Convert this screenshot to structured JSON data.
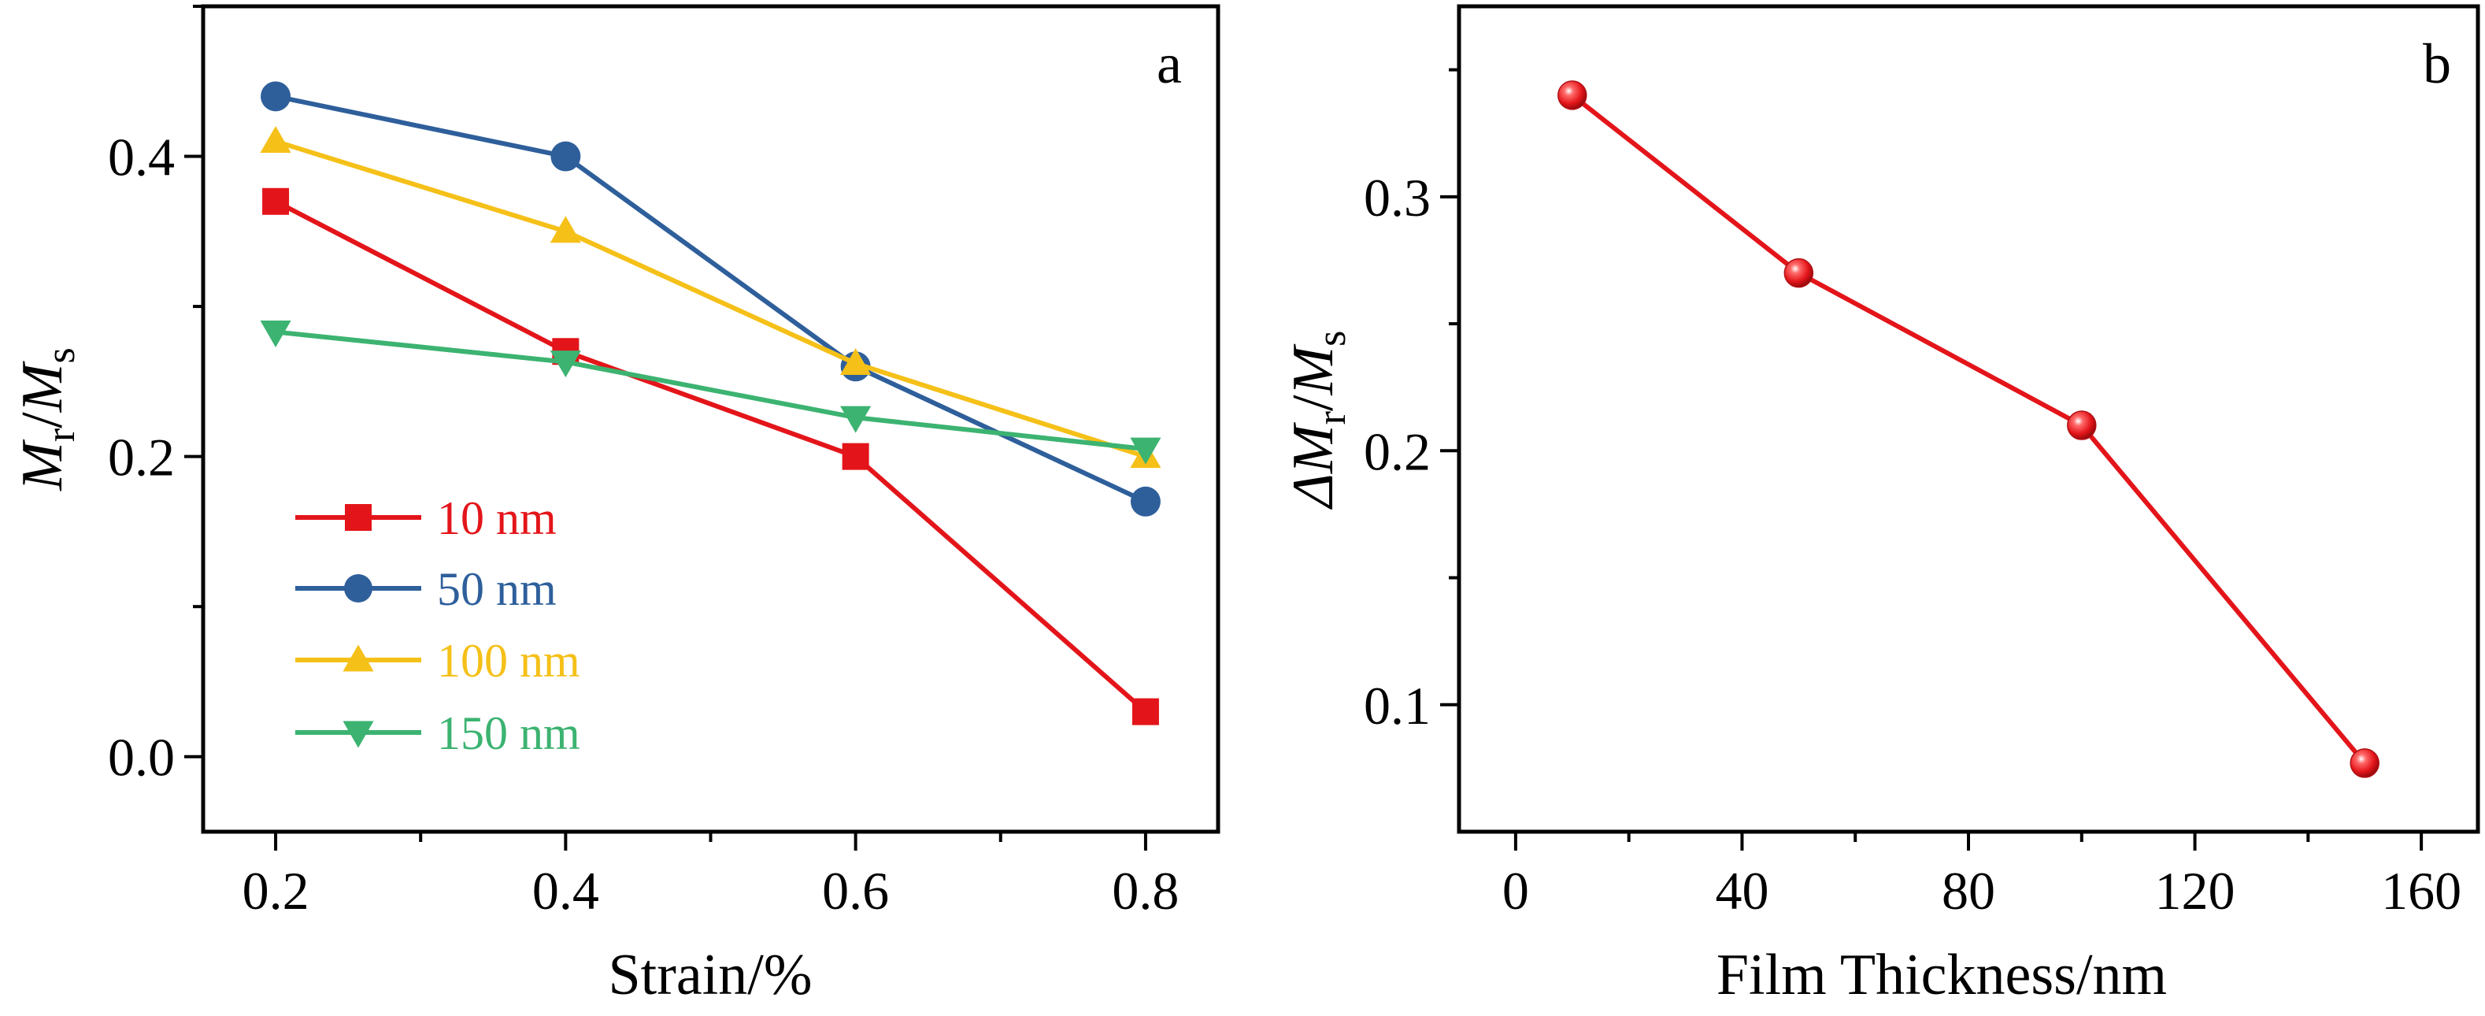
{
  "chart_data": [
    {
      "type": "line",
      "panel_label": "a",
      "xlabel": "Strain/%",
      "ylabel_parts": [
        "M",
        "r",
        "/",
        "M",
        "s"
      ],
      "x": [
        0.2,
        0.4,
        0.6,
        0.8
      ],
      "x_ticks": [
        "0.2",
        "0.4",
        "0.6",
        "0.8"
      ],
      "y_ticks": [
        "0.0",
        "0.2",
        "0.4"
      ],
      "xlim": [
        0.15,
        0.85
      ],
      "ylim": [
        -0.05,
        0.5
      ],
      "legend_position": "lower-left",
      "grid": false,
      "series": [
        {
          "name": "10 nm",
          "color": "#e3151a",
          "marker": "square",
          "values": [
            0.37,
            0.27,
            0.2,
            0.03
          ]
        },
        {
          "name": "50 nm",
          "color": "#2e5f9b",
          "marker": "circle",
          "values": [
            0.44,
            0.4,
            0.26,
            0.17
          ]
        },
        {
          "name": "100 nm",
          "color": "#f5c018",
          "marker": "triangle-up",
          "values": [
            0.41,
            0.35,
            0.262,
            0.2
          ]
        },
        {
          "name": "150 nm",
          "color": "#3cb371",
          "marker": "triangle-down",
          "values": [
            0.283,
            0.263,
            0.226,
            0.205
          ]
        }
      ]
    },
    {
      "type": "line",
      "panel_label": "b",
      "xlabel": "Film Thickness/nm",
      "ylabel_parts": [
        "ΔM",
        "r",
        "/",
        "M",
        "s"
      ],
      "x": [
        10,
        50,
        100,
        150
      ],
      "x_ticks": [
        "0",
        "40",
        "80",
        "120",
        "160"
      ],
      "y_ticks": [
        "0.1",
        "0.2",
        "0.3"
      ],
      "xlim": [
        -10,
        170
      ],
      "ylim": [
        0.05,
        0.375
      ],
      "legend_position": "none",
      "grid": false,
      "series": [
        {
          "color": "#e3151a",
          "marker": "sphere",
          "values": [
            0.34,
            0.27,
            0.21,
            0.077
          ]
        }
      ]
    }
  ]
}
